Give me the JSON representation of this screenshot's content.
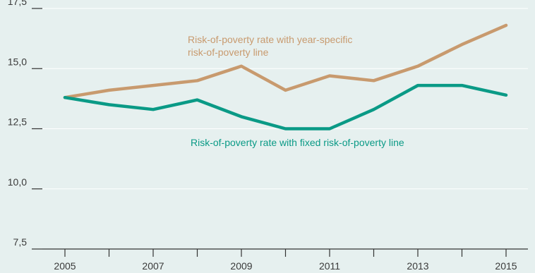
{
  "chart_data": {
    "type": "line",
    "title": "",
    "xlabel": "",
    "ylabel": "",
    "x": [
      2005,
      2006,
      2007,
      2008,
      2009,
      2010,
      2011,
      2012,
      2013,
      2014,
      2015
    ],
    "x_tick_labels": [
      "2005",
      "2007",
      "2009",
      "2011",
      "2013",
      "2015"
    ],
    "y_tick_labels": [
      "7,5",
      "10,0",
      "12,5",
      "15,0",
      "17,5"
    ],
    "ylim": [
      7.5,
      17.5
    ],
    "xlim": [
      2005,
      2015
    ],
    "grid": "horizontal",
    "series": [
      {
        "annotation_lines": [
          "Risk-of-poverty rate with year-specific",
          "risk-of-poverty line"
        ],
        "color": "#c89a6e",
        "values": [
          13.8,
          14.1,
          14.3,
          14.5,
          15.1,
          14.1,
          14.7,
          14.5,
          15.1,
          16.0,
          16.8
        ]
      },
      {
        "annotation_lines": [
          "Risk-of-poverty rate with fixed risk-of-poverty line"
        ],
        "color": "#0a9a86",
        "values": [
          13.8,
          13.5,
          13.3,
          13.7,
          13.0,
          12.5,
          12.5,
          13.3,
          14.3,
          14.3,
          13.9
        ]
      }
    ]
  }
}
